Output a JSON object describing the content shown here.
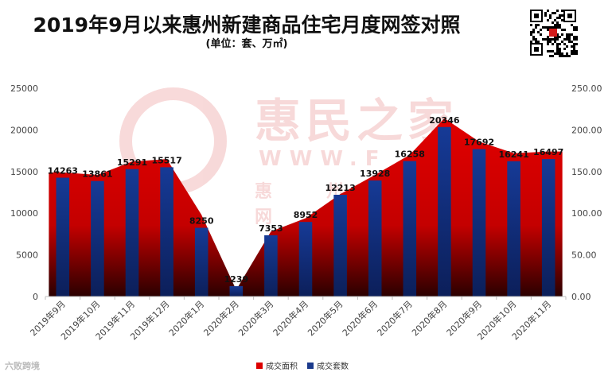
{
  "title": "2019年9月以来惠州新建商品住宅月度网签对照",
  "subtitle": "(单位：套、万㎡)",
  "watermark": {
    "brand_cn": "惠民之家",
    "brand_url": "WWW.F",
    "brand_sub": "惠 州 房 产 网"
  },
  "brand_bottom_left": "六败跨境",
  "colors": {
    "area": "#dd0000",
    "units": "#1b3a8c",
    "background": "#ffffff"
  },
  "chart_data": {
    "type": "bar",
    "categories": [
      "2019年9月",
      "2019年10月",
      "2019年11月",
      "2019年12月",
      "2020年1月",
      "2020年2月",
      "2020年3月",
      "2020年4月",
      "2020年5月",
      "2020年6月",
      "2020年7月",
      "2020年8月",
      "2020年9月",
      "2020年10月",
      "2020年11月"
    ],
    "series": [
      {
        "name": "成交面积",
        "kind": "area",
        "axis": "right",
        "values": [
          149,
          146,
          162,
          165,
          98,
          8,
          78,
          94,
          123,
          146,
          170,
          214,
          186,
          172,
          174
        ]
      },
      {
        "name": "成交套数",
        "kind": "bar",
        "axis": "left",
        "values": [
          14263,
          13861,
          15291,
          15517,
          8250,
          1239,
          7353,
          8952,
          12213,
          13928,
          16258,
          20346,
          17692,
          16241,
          16497
        ]
      }
    ],
    "data_labels": [
      "14263",
      "13861",
      "15291",
      "15517",
      "8250",
      "1239",
      "7353",
      "8952",
      "12213",
      "13928",
      "16258",
      "20346",
      "17692",
      "16241",
      "16497"
    ],
    "y_left": {
      "ticks": [
        "0",
        "5000",
        "10000",
        "15000",
        "20000",
        "25000"
      ],
      "ylim": [
        0,
        25000
      ]
    },
    "y_right": {
      "ticks": [
        "0.00",
        "50.00",
        "100.00",
        "150.00",
        "200.00",
        "250.00"
      ],
      "ylim": [
        0,
        250
      ]
    },
    "legend_position": "bottom",
    "grid": false
  }
}
